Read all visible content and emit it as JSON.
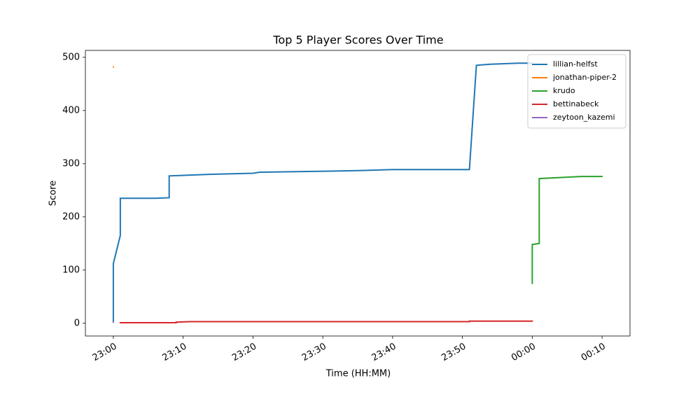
{
  "chart_data": {
    "type": "line",
    "title": "Top 5 Player Scores Over Time",
    "x_label": "Time (HH:MM)",
    "y_label": "Score",
    "xlim": [
      "22:56",
      "00:14"
    ],
    "xticks": [
      "23:00",
      "23:10",
      "23:20",
      "23:30",
      "23:40",
      "23:50",
      "00:00",
      "00:10"
    ],
    "ylim": [
      -24,
      513
    ],
    "yticks": [
      0,
      100,
      200,
      300,
      400,
      500
    ],
    "legend": "upper right",
    "grid": false,
    "series": [
      {
        "name": "lillian-helfst",
        "color": "#1f77b4",
        "x": [
          "23:00",
          "23:00",
          "23:00",
          "23:01",
          "23:01",
          "23:06",
          "23:08",
          "23:08",
          "23:10",
          "23:12",
          "23:14",
          "23:17",
          "23:20",
          "23:21",
          "23:26",
          "23:31",
          "23:35",
          "23:40",
          "23:51",
          "23:52",
          "23:53",
          "23:54",
          "23:56",
          "23:58",
          "00:00"
        ],
        "values": [
          3,
          110,
          112,
          165,
          235,
          235,
          236,
          277,
          278,
          279,
          280,
          281,
          282,
          284,
          285,
          286,
          287,
          289,
          289,
          485,
          486,
          487,
          488,
          489,
          489
        ]
      },
      {
        "name": "jonathan-piper-2",
        "color": "#ff7f0e",
        "x": [
          "23:00",
          "23:00"
        ],
        "values": [
          482,
          482
        ]
      },
      {
        "name": "krudo",
        "color": "#2ca02c",
        "x": [
          "00:00",
          "00:00",
          "00:01",
          "00:01",
          "00:01",
          "00:04",
          "00:07",
          "00:10"
        ],
        "values": [
          75,
          148,
          150,
          195,
          272,
          274,
          276,
          276
        ]
      },
      {
        "name": "bettinabeck",
        "color": "#d62728",
        "x": [
          "23:01",
          "23:09",
          "23:09",
          "23:11",
          "23:51",
          "23:51",
          "00:00"
        ],
        "values": [
          1,
          1,
          2,
          3,
          3,
          4,
          4
        ]
      },
      {
        "name": "zeytoon_kazemi",
        "color": "#9467bd",
        "x": [
          "23:00",
          "23:00"
        ],
        "values": [
          2,
          2
        ]
      }
    ]
  }
}
